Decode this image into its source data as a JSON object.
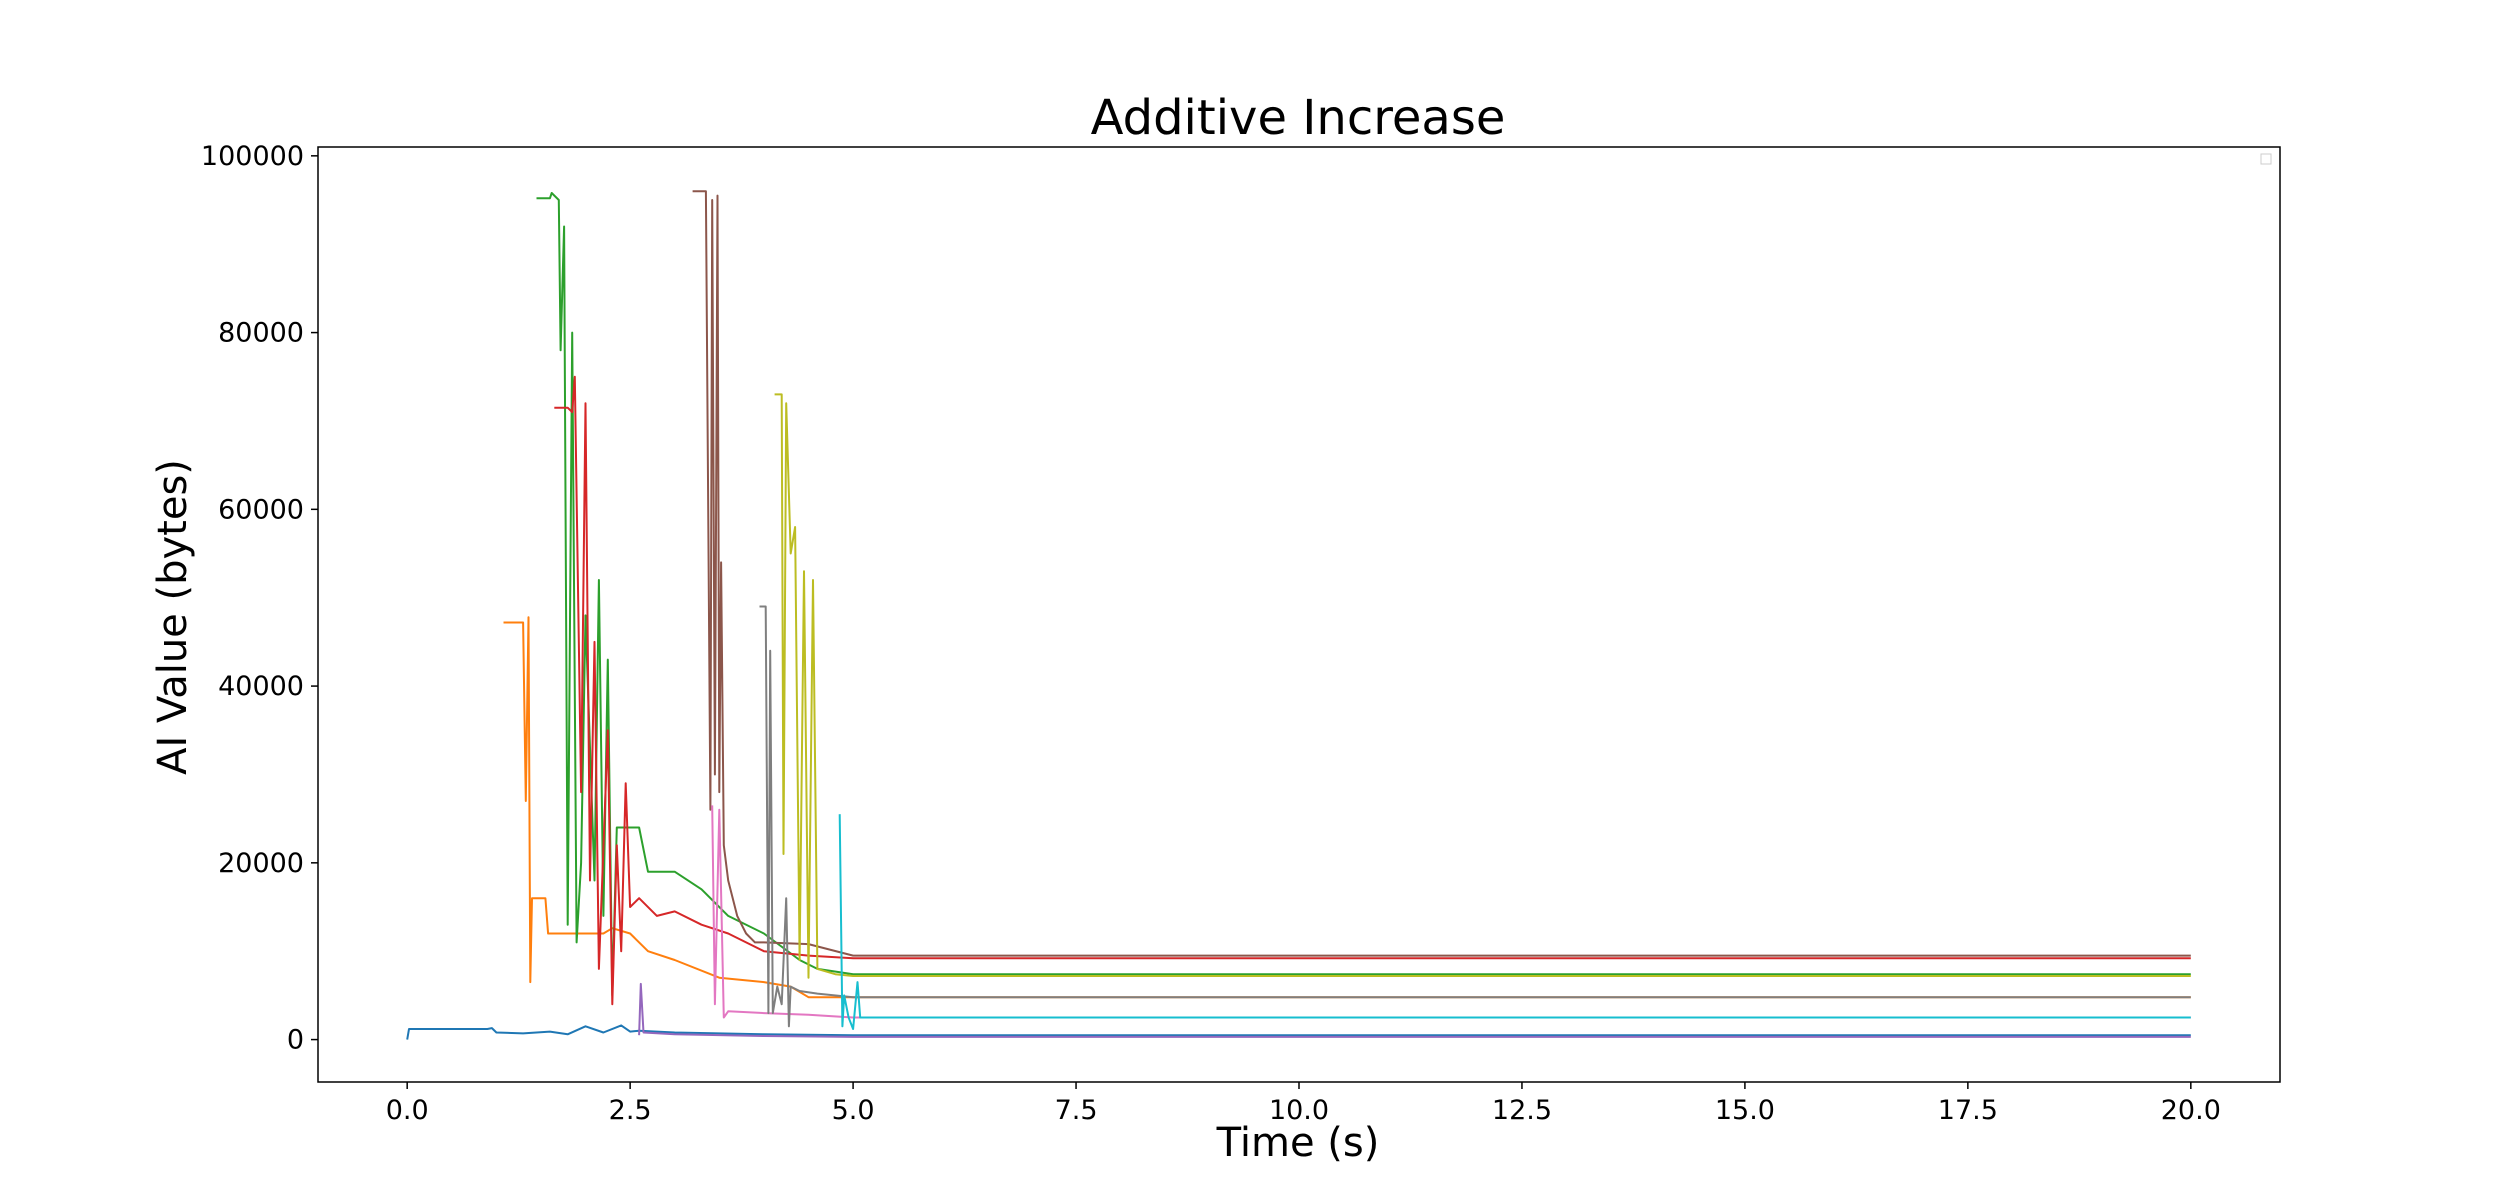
{
  "chart_data": {
    "type": "line",
    "title": "Additive Increase",
    "xlabel": "Time (s)",
    "ylabel": "AI Value (bytes)",
    "xlim": [
      -1.0,
      21.0
    ],
    "ylim": [
      -4800,
      101000
    ],
    "x_ticks": [
      0.0,
      2.5,
      5.0,
      7.5,
      10.0,
      12.5,
      15.0,
      17.5,
      20.0
    ],
    "x_tick_labels": [
      "0.0",
      "2.5",
      "5.0",
      "7.5",
      "10.0",
      "12.5",
      "15.0",
      "17.5",
      "20.0"
    ],
    "y_ticks": [
      0,
      20000,
      40000,
      60000,
      80000,
      100000
    ],
    "y_tick_labels": [
      "0",
      "20000",
      "40000",
      "60000",
      "80000",
      "100000"
    ],
    "grid": false,
    "legend": "top-right (empty)",
    "series": [
      {
        "color": "#1f77b4",
        "width": 2,
        "points": [
          [
            0.0,
            0
          ],
          [
            0.02,
            1200
          ],
          [
            0.4,
            1200
          ],
          [
            0.9,
            1200
          ],
          [
            0.95,
            1300
          ],
          [
            1.0,
            800
          ],
          [
            1.3,
            700
          ],
          [
            1.6,
            900
          ],
          [
            1.8,
            600
          ],
          [
            2.0,
            1500
          ],
          [
            2.2,
            800
          ],
          [
            2.4,
            1600
          ],
          [
            2.5,
            900
          ],
          [
            2.6,
            1000
          ],
          [
            3.0,
            800
          ],
          [
            4.0,
            600
          ],
          [
            5.0,
            500
          ],
          [
            20.0,
            500
          ]
        ]
      },
      {
        "color": "#ff7f0e",
        "width": 2,
        "points": [
          [
            1.08,
            47200
          ],
          [
            1.3,
            47200
          ],
          [
            1.33,
            27000
          ],
          [
            1.36,
            47800
          ],
          [
            1.38,
            6500
          ],
          [
            1.4,
            16000
          ],
          [
            1.55,
            16000
          ],
          [
            1.58,
            12000
          ],
          [
            1.8,
            12000
          ],
          [
            2.2,
            12000
          ],
          [
            2.3,
            12600
          ],
          [
            2.5,
            12000
          ],
          [
            2.7,
            10000
          ],
          [
            3.0,
            9000
          ],
          [
            3.5,
            7000
          ],
          [
            4.0,
            6500
          ],
          [
            4.3,
            6000
          ],
          [
            4.5,
            4800
          ],
          [
            5.0,
            4800
          ],
          [
            20.0,
            4800
          ]
        ]
      },
      {
        "color": "#2ca02c",
        "width": 2,
        "points": [
          [
            1.45,
            95200
          ],
          [
            1.6,
            95200
          ],
          [
            1.62,
            95800
          ],
          [
            1.7,
            95000
          ],
          [
            1.72,
            78000
          ],
          [
            1.76,
            92000
          ],
          [
            1.8,
            13000
          ],
          [
            1.85,
            80000
          ],
          [
            1.9,
            11000
          ],
          [
            1.95,
            20000
          ],
          [
            2.0,
            48000
          ],
          [
            2.1,
            18000
          ],
          [
            2.15,
            52000
          ],
          [
            2.2,
            14000
          ],
          [
            2.25,
            43000
          ],
          [
            2.3,
            5000
          ],
          [
            2.35,
            24000
          ],
          [
            2.6,
            24000
          ],
          [
            2.7,
            19000
          ],
          [
            3.0,
            19000
          ],
          [
            3.3,
            17000
          ],
          [
            3.6,
            14000
          ],
          [
            4.0,
            12000
          ],
          [
            4.4,
            9000
          ],
          [
            4.6,
            8000
          ],
          [
            5.0,
            7400
          ],
          [
            20.0,
            7400
          ]
        ]
      },
      {
        "color": "#d62728",
        "width": 2,
        "points": [
          [
            1.65,
            71500
          ],
          [
            1.8,
            71500
          ],
          [
            1.85,
            71000
          ],
          [
            1.88,
            75000
          ],
          [
            1.95,
            28000
          ],
          [
            2.0,
            72000
          ],
          [
            2.05,
            18000
          ],
          [
            2.1,
            45000
          ],
          [
            2.15,
            8000
          ],
          [
            2.25,
            35000
          ],
          [
            2.3,
            4000
          ],
          [
            2.35,
            22000
          ],
          [
            2.4,
            10000
          ],
          [
            2.45,
            29000
          ],
          [
            2.5,
            15000
          ],
          [
            2.6,
            16000
          ],
          [
            2.8,
            14000
          ],
          [
            3.0,
            14500
          ],
          [
            3.3,
            13000
          ],
          [
            3.6,
            12000
          ],
          [
            3.8,
            11000
          ],
          [
            4.0,
            10000
          ],
          [
            4.5,
            9500
          ],
          [
            5.0,
            9200
          ],
          [
            20.0,
            9200
          ]
        ]
      },
      {
        "color": "#9467bd",
        "width": 2,
        "points": [
          [
            2.6,
            500
          ],
          [
            2.62,
            6300
          ],
          [
            2.65,
            800
          ],
          [
            3.0,
            600
          ],
          [
            4.0,
            400
          ],
          [
            5.0,
            300
          ],
          [
            20.0,
            300
          ]
        ]
      },
      {
        "color": "#8c564b",
        "width": 2,
        "points": [
          [
            3.2,
            96000
          ],
          [
            3.35,
            96000
          ],
          [
            3.4,
            26000
          ],
          [
            3.42,
            95000
          ],
          [
            3.45,
            30000
          ],
          [
            3.48,
            95500
          ],
          [
            3.5,
            28000
          ],
          [
            3.52,
            54000
          ],
          [
            3.55,
            22000
          ],
          [
            3.6,
            18000
          ],
          [
            3.7,
            14000
          ],
          [
            3.8,
            12000
          ],
          [
            3.9,
            11000
          ],
          [
            4.0,
            11000
          ],
          [
            4.5,
            10800
          ],
          [
            5.0,
            9500
          ],
          [
            20.0,
            9500
          ]
        ]
      },
      {
        "color": "#e377c2",
        "width": 2,
        "points": [
          [
            3.42,
            26500
          ],
          [
            3.45,
            4000
          ],
          [
            3.5,
            26000
          ],
          [
            3.55,
            2500
          ],
          [
            3.6,
            3200
          ],
          [
            4.0,
            3000
          ],
          [
            4.5,
            2800
          ],
          [
            5.0,
            2500
          ],
          [
            20.0,
            2500
          ]
        ]
      },
      {
        "color": "#7f7f7f",
        "width": 2,
        "points": [
          [
            3.95,
            49000
          ],
          [
            4.02,
            49000
          ],
          [
            4.05,
            3000
          ],
          [
            4.07,
            44000
          ],
          [
            4.1,
            3000
          ],
          [
            4.15,
            6000
          ],
          [
            4.2,
            4000
          ],
          [
            4.25,
            16000
          ],
          [
            4.28,
            1500
          ],
          [
            4.3,
            6000
          ],
          [
            4.4,
            5500
          ],
          [
            4.6,
            5200
          ],
          [
            5.0,
            4800
          ],
          [
            20.0,
            4800
          ]
        ]
      },
      {
        "color": "#bcbd22",
        "width": 2,
        "points": [
          [
            4.12,
            73000
          ],
          [
            4.2,
            73000
          ],
          [
            4.22,
            21000
          ],
          [
            4.25,
            72000
          ],
          [
            4.3,
            55000
          ],
          [
            4.35,
            58000
          ],
          [
            4.4,
            9000
          ],
          [
            4.45,
            53000
          ],
          [
            4.5,
            7000
          ],
          [
            4.55,
            52000
          ],
          [
            4.6,
            8000
          ],
          [
            4.8,
            7400
          ],
          [
            5.0,
            7200
          ],
          [
            20.0,
            7200
          ]
        ]
      },
      {
        "color": "#17becf",
        "width": 2,
        "points": [
          [
            4.85,
            25500
          ],
          [
            4.88,
            1500
          ],
          [
            4.9,
            5000
          ],
          [
            4.95,
            2500
          ],
          [
            5.0,
            1200
          ],
          [
            5.05,
            6500
          ],
          [
            5.08,
            2500
          ],
          [
            5.5,
            2500
          ],
          [
            20.0,
            2500
          ]
        ]
      }
    ]
  }
}
